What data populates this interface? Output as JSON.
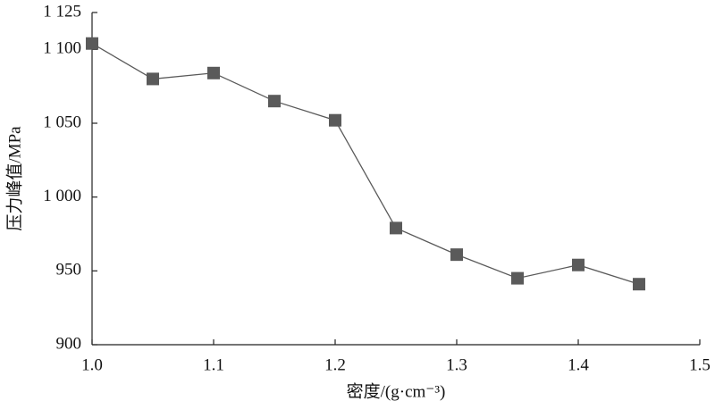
{
  "chart_data": {
    "type": "line",
    "xlabel": "密度/(g·cm⁻³)",
    "ylabel": "压力峰值/MPa",
    "x": [
      1.0,
      1.05,
      1.1,
      1.15,
      1.2,
      1.25,
      1.3,
      1.35,
      1.4,
      1.45
    ],
    "series": [
      {
        "color": "#5a5a5a",
        "values": [
          1104,
          1080,
          1084,
          1065,
          1052,
          979,
          961,
          945,
          954,
          941
        ]
      }
    ],
    "xlim": [
      1.0,
      1.5
    ],
    "xticks": [
      {
        "value": 1.0,
        "label": "1.0"
      },
      1.1,
      1.2,
      1.3,
      1.4,
      1.5
    ],
    "ylim": [
      900,
      1125
    ],
    "yticks": [
      {
        "value": 900,
        "label": "900"
      },
      {
        "value": 950,
        "label": "950"
      },
      {
        "value": 1000,
        "label": "1 000"
      },
      {
        "value": 1050,
        "label": "1 050"
      },
      {
        "value": 1100,
        "label": "1 100"
      },
      {
        "value": 1125,
        "label": "1 125"
      }
    ],
    "grid": false
  }
}
